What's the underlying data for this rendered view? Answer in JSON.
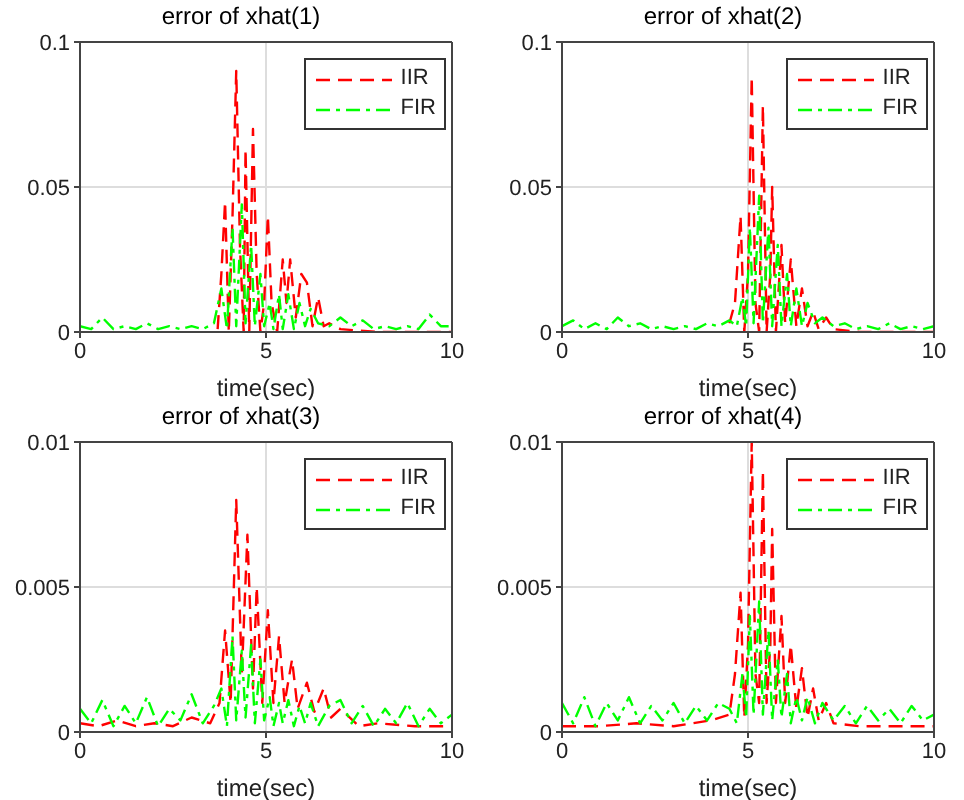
{
  "chart_data": [
    {
      "type": "line",
      "title": "error of xhat(1)",
      "xlabel": "time(sec)",
      "xlim": [
        0,
        10
      ],
      "xticks": [
        0,
        5,
        10
      ],
      "ylim": [
        0,
        0.1
      ],
      "yticks": [
        0,
        0.05,
        0.1
      ],
      "grid": true,
      "legend": "top right",
      "marker": "none",
      "series": [
        {
          "name": "IIR",
          "color": "#ff0000",
          "line_style": "dashed",
          "x": [
            3.7,
            3.8,
            3.9,
            4.0,
            4.1,
            4.2,
            4.3,
            4.4,
            4.45,
            4.55,
            4.65,
            4.75,
            4.85,
            4.95,
            5.05,
            5.15,
            5.3,
            5.45,
            5.55,
            5.65,
            5.8,
            5.95,
            6.1,
            6.25,
            6.4,
            6.55,
            6.7,
            7,
            8,
            9,
            10
          ],
          "values": [
            0.001,
            0.02,
            0.045,
            0,
            0.04,
            0.09,
            0.03,
            0,
            0.063,
            0,
            0.07,
            0.02,
            0,
            0.01,
            0.04,
            0.01,
            0,
            0.025,
            0.01,
            0.025,
            0.005,
            0.02,
            0.017,
            0.002,
            0.012,
            0.002,
            0.003,
            0.001,
            0,
            0,
            0
          ]
        },
        {
          "name": "FIR",
          "color": "#00ff00",
          "line_style": "dashdot",
          "x": [
            0,
            0.3,
            0.6,
            0.9,
            1.2,
            1.5,
            1.8,
            2.1,
            2.4,
            2.7,
            3.0,
            3.3,
            3.6,
            3.8,
            3.95,
            4.1,
            4.2,
            4.35,
            4.45,
            4.6,
            4.7,
            4.85,
            4.95,
            5.1,
            5.2,
            5.35,
            5.45,
            5.6,
            5.75,
            5.9,
            6.05,
            6.2,
            6.4,
            6.7,
            7.0,
            7.3,
            7.6,
            7.9,
            8.2,
            8.5,
            8.8,
            9.1,
            9.4,
            9.7,
            10
          ],
          "values": [
            0.002,
            0.001,
            0.005,
            0.001,
            0.002,
            0.001,
            0.003,
            0.001,
            0.002,
            0.001,
            0.002,
            0.001,
            0.003,
            0.015,
            0.001,
            0.036,
            0.002,
            0.044,
            0.003,
            0.03,
            0.002,
            0.02,
            0.002,
            0.01,
            0.001,
            0.013,
            0.001,
            0.013,
            0.001,
            0.01,
            0.002,
            0.008,
            0.003,
            0.002,
            0.005,
            0.002,
            0.004,
            0.001,
            0.002,
            0.001,
            0.002,
            0.001,
            0.006,
            0.002,
            0.002
          ]
        }
      ]
    },
    {
      "type": "line",
      "title": "error of xhat(2)",
      "xlabel": "time(sec)",
      "xlim": [
        0,
        10
      ],
      "xticks": [
        0,
        5,
        10
      ],
      "ylim": [
        0,
        0.1
      ],
      "yticks": [
        0,
        0.05,
        0.1
      ],
      "grid": true,
      "legend": "top right",
      "marker": "none",
      "series": [
        {
          "name": "IIR",
          "color": "#ff0000",
          "line_style": "dashed",
          "x": [
            4.5,
            4.65,
            4.8,
            4.9,
            5.0,
            5.1,
            5.2,
            5.3,
            5.4,
            5.5,
            5.6,
            5.65,
            5.75,
            5.9,
            6.0,
            6.15,
            6.3,
            6.45,
            6.6,
            6.75,
            6.9,
            7.1,
            7.3,
            8,
            9,
            10
          ],
          "values": [
            0.003,
            0.01,
            0.04,
            0,
            0.02,
            0.088,
            0.01,
            0,
            0.078,
            0,
            0.02,
            0.05,
            0,
            0.03,
            0.003,
            0.025,
            0.002,
            0.015,
            0.002,
            0.007,
            0.001,
            0.005,
            0.001,
            0,
            0,
            0
          ]
        },
        {
          "name": "FIR",
          "color": "#00ff00",
          "line_style": "dashdot",
          "x": [
            0,
            0.3,
            0.6,
            0.9,
            1.2,
            1.5,
            1.8,
            2.1,
            2.4,
            2.7,
            3.0,
            3.3,
            3.6,
            3.9,
            4.2,
            4.5,
            4.7,
            4.85,
            4.95,
            5.05,
            5.15,
            5.3,
            5.4,
            5.55,
            5.65,
            5.8,
            5.9,
            6.05,
            6.15,
            6.3,
            6.45,
            6.6,
            6.8,
            7.0,
            7.3,
            7.6,
            7.9,
            8.2,
            8.5,
            8.8,
            9.1,
            9.4,
            9.7,
            10
          ],
          "values": [
            0.002,
            0.004,
            0.001,
            0.003,
            0.001,
            0.005,
            0.002,
            0.003,
            0.001,
            0.002,
            0.001,
            0.002,
            0.001,
            0.003,
            0.002,
            0.004,
            0.002,
            0.012,
            0.002,
            0.036,
            0.003,
            0.047,
            0.003,
            0.036,
            0.002,
            0.03,
            0.002,
            0.02,
            0.002,
            0.015,
            0.002,
            0.01,
            0.003,
            0.005,
            0.002,
            0.003,
            0.001,
            0.002,
            0.001,
            0.003,
            0.001,
            0.002,
            0.001,
            0.002
          ]
        }
      ]
    },
    {
      "type": "line",
      "title": "error of xhat(3)",
      "xlabel": "time(sec)",
      "xlim": [
        0,
        10
      ],
      "xticks": [
        0,
        5,
        10
      ],
      "ylim": [
        0,
        0.01
      ],
      "yticks": [
        0,
        0.005,
        0.01
      ],
      "grid": true,
      "legend": "top right",
      "marker": "none",
      "series": [
        {
          "name": "IIR",
          "color": "#ff0000",
          "line_style": "dashed",
          "x": [
            0,
            0.5,
            1,
            1.5,
            2,
            2.5,
            3,
            3.5,
            3.75,
            3.9,
            4.05,
            4.2,
            4.35,
            4.5,
            4.65,
            4.75,
            4.9,
            5.05,
            5.2,
            5.35,
            5.5,
            5.7,
            5.85,
            6.1,
            6.3,
            6.55,
            6.75,
            7.0,
            7.5,
            8,
            9,
            10
          ],
          "values": [
            0.0003,
            0.0002,
            0.0004,
            0.0002,
            0.0003,
            0.0002,
            0.0005,
            0.0003,
            0.001,
            0.0035,
            0.001,
            0.008,
            0.002,
            0.0068,
            0.0015,
            0.005,
            0.001,
            0.0042,
            0.001,
            0.0033,
            0.001,
            0.0025,
            0.0008,
            0.0017,
            0.0007,
            0.0015,
            0.0005,
            0.0008,
            0.0002,
            0.0003,
            0.0002,
            0.0002
          ]
        },
        {
          "name": "FIR",
          "color": "#00ff00",
          "line_style": "dashdot",
          "x": [
            0,
            0.3,
            0.6,
            0.9,
            1.2,
            1.5,
            1.8,
            2.1,
            2.4,
            2.7,
            3.0,
            3.3,
            3.6,
            3.8,
            3.95,
            4.1,
            4.2,
            4.35,
            4.45,
            4.6,
            4.7,
            4.85,
            4.95,
            5.1,
            5.2,
            5.35,
            5.45,
            5.6,
            5.75,
            5.9,
            6.05,
            6.2,
            6.4,
            6.7,
            7.0,
            7.3,
            7.6,
            7.9,
            8.2,
            8.5,
            8.8,
            9.1,
            9.4,
            9.7,
            10
          ],
          "values": [
            0.0008,
            0.0003,
            0.0011,
            0.0002,
            0.0009,
            0.0003,
            0.0012,
            0.0002,
            0.0008,
            0.0004,
            0.0013,
            0.0003,
            0.0009,
            0.0015,
            0.0002,
            0.0033,
            0.0004,
            0.0028,
            0.0005,
            0.003,
            0.0003,
            0.0025,
            0.0004,
            0.0012,
            0.0002,
            0.001,
            0.0003,
            0.0011,
            0.0002,
            0.0009,
            0.0003,
            0.001,
            0.0002,
            0.0009,
            0.0011,
            0.0003,
            0.0009,
            0.0002,
            0.0008,
            0.0003,
            0.001,
            0.0002,
            0.0008,
            0.0003,
            0.0006
          ]
        }
      ]
    },
    {
      "type": "line",
      "title": "error of xhat(4)",
      "xlabel": "time(sec)",
      "xlim": [
        0,
        10
      ],
      "xticks": [
        0,
        5,
        10
      ],
      "ylim": [
        0,
        0.01
      ],
      "yticks": [
        0,
        0.005,
        0.01
      ],
      "grid": true,
      "legend": "top right",
      "marker": "none",
      "series": [
        {
          "name": "IIR",
          "color": "#ff0000",
          "line_style": "dashed",
          "x": [
            0,
            1,
            2,
            3,
            4,
            4.5,
            4.65,
            4.8,
            4.9,
            5.0,
            5.1,
            5.2,
            5.3,
            5.4,
            5.5,
            5.6,
            5.65,
            5.75,
            5.9,
            6.0,
            6.15,
            6.3,
            6.45,
            6.6,
            6.75,
            6.9,
            7.1,
            7.3,
            8,
            9,
            10
          ],
          "values": [
            0.0002,
            0.0002,
            0.0003,
            0.0002,
            0.0004,
            0.0006,
            0.002,
            0.0048,
            0.0005,
            0.003,
            0.01,
            0.002,
            0.001,
            0.009,
            0.001,
            0.003,
            0.007,
            0.001,
            0.004,
            0.001,
            0.003,
            0.0008,
            0.0022,
            0.0005,
            0.0015,
            0.0004,
            0.001,
            0.0003,
            0.0002,
            0.0002,
            0.0002
          ]
        },
        {
          "name": "FIR",
          "color": "#00ff00",
          "line_style": "dashdot",
          "x": [
            0,
            0.3,
            0.6,
            0.9,
            1.2,
            1.5,
            1.8,
            2.1,
            2.4,
            2.7,
            3.0,
            3.3,
            3.6,
            3.9,
            4.2,
            4.5,
            4.7,
            4.85,
            4.95,
            5.05,
            5.15,
            5.3,
            5.4,
            5.55,
            5.65,
            5.8,
            5.9,
            6.05,
            6.15,
            6.3,
            6.45,
            6.6,
            6.8,
            7.0,
            7.3,
            7.6,
            7.9,
            8.2,
            8.5,
            8.8,
            9.1,
            9.4,
            9.7,
            10
          ],
          "values": [
            0.001,
            0.0003,
            0.0012,
            0.0002,
            0.001,
            0.0004,
            0.0012,
            0.0003,
            0.0009,
            0.0004,
            0.001,
            0.0003,
            0.0009,
            0.0004,
            0.001,
            0.0008,
            0.0003,
            0.002,
            0.0005,
            0.004,
            0.0006,
            0.0045,
            0.0006,
            0.0035,
            0.0004,
            0.0025,
            0.0005,
            0.002,
            0.0003,
            0.0012,
            0.0004,
            0.0012,
            0.0003,
            0.001,
            0.0004,
            0.0009,
            0.0003,
            0.0009,
            0.0004,
            0.0008,
            0.0003,
            0.0009,
            0.0004,
            0.0006
          ]
        }
      ]
    }
  ]
}
